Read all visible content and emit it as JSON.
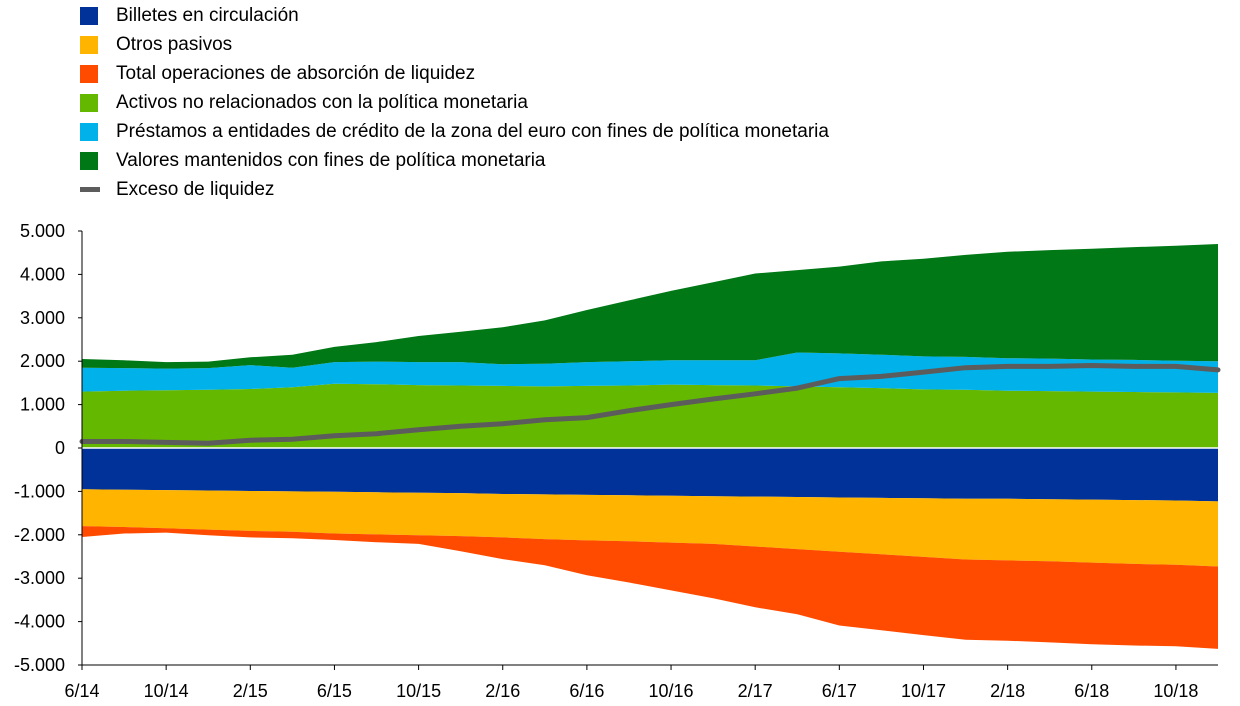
{
  "chart_data": {
    "type": "area",
    "xlabel": "",
    "ylabel": "",
    "ylim": [
      -5000,
      5000
    ],
    "yticks": [
      5000,
      4000,
      3000,
      2000,
      1000,
      0,
      -1000,
      -2000,
      -3000,
      -4000,
      -5000
    ],
    "ytick_labels": [
      "5.000",
      "4.000",
      "3.000",
      "2.000",
      "1.000",
      "0",
      "-1.000",
      "-2.000",
      "-3.000",
      "-4.000",
      "-5.000"
    ],
    "xtick_labels": [
      "6/14",
      "10/14",
      "2/15",
      "6/15",
      "10/15",
      "2/16",
      "6/16",
      "10/16",
      "2/17",
      "6/17",
      "10/17",
      "2/18",
      "6/18",
      "10/18"
    ],
    "legend_position": "top-left",
    "grid": false,
    "x": [
      "6/14",
      "8/14",
      "10/14",
      "12/14",
      "2/15",
      "4/15",
      "6/15",
      "8/15",
      "10/15",
      "12/15",
      "2/16",
      "4/16",
      "6/16",
      "8/16",
      "10/16",
      "12/16",
      "2/17",
      "4/17",
      "6/17",
      "8/17",
      "10/17",
      "12/17",
      "2/18",
      "4/18",
      "6/18",
      "8/18",
      "10/18",
      "12/18"
    ],
    "series": [
      {
        "name": "Billetes en circulación",
        "kind": "area-negative",
        "color": "#003299",
        "values": [
          -950,
          -960,
          -970,
          -980,
          -990,
          -1000,
          -1010,
          -1020,
          -1030,
          -1040,
          -1060,
          -1070,
          -1080,
          -1090,
          -1100,
          -1110,
          -1120,
          -1130,
          -1140,
          -1150,
          -1160,
          -1170,
          -1170,
          -1180,
          -1190,
          -1200,
          -1210,
          -1230
        ]
      },
      {
        "name": "Otros pasivos",
        "kind": "area-negative",
        "color": "#FFB400",
        "values": [
          -850,
          -860,
          -880,
          -900,
          -920,
          -930,
          -960,
          -970,
          -980,
          -990,
          -1000,
          -1030,
          -1050,
          -1060,
          -1080,
          -1100,
          -1150,
          -1200,
          -1250,
          -1300,
          -1350,
          -1400,
          -1420,
          -1430,
          -1450,
          -1470,
          -1480,
          -1500
        ]
      },
      {
        "name": "Total operaciones de absorción de liquidez",
        "kind": "area-negative",
        "color": "#FF4B00",
        "values": [
          -250,
          -150,
          -100,
          -130,
          -150,
          -150,
          -150,
          -180,
          -200,
          -350,
          -500,
          -600,
          -800,
          -950,
          -1100,
          -1250,
          -1400,
          -1500,
          -1700,
          -1750,
          -1800,
          -1850,
          -1850,
          -1870,
          -1880,
          -1880,
          -1880,
          -1900
        ]
      },
      {
        "name": "Activos no relacionados con la política monetaria",
        "kind": "area-positive",
        "color": "#65B800",
        "values": [
          1300,
          1320,
          1330,
          1340,
          1360,
          1400,
          1480,
          1470,
          1450,
          1440,
          1430,
          1420,
          1430,
          1440,
          1460,
          1450,
          1440,
          1420,
          1400,
          1380,
          1350,
          1340,
          1320,
          1310,
          1300,
          1290,
          1280,
          1270
        ]
      },
      {
        "name": "Préstamos a entidades de crédito de la zona del euro con fines de política monetaria",
        "kind": "area-positive",
        "color": "#00B1EA",
        "values": [
          550,
          520,
          500,
          500,
          550,
          450,
          500,
          520,
          530,
          540,
          500,
          520,
          550,
          560,
          560,
          570,
          580,
          780,
          780,
          770,
          760,
          760,
          750,
          750,
          740,
          740,
          730,
          730
        ]
      },
      {
        "name": "Valores mantenidos con fines de política monetaria",
        "kind": "area-positive",
        "color": "#007816",
        "values": [
          200,
          180,
          150,
          150,
          180,
          300,
          350,
          450,
          600,
          700,
          850,
          1000,
          1200,
          1400,
          1600,
          1800,
          2000,
          1900,
          2000,
          2150,
          2250,
          2350,
          2450,
          2500,
          2550,
          2600,
          2650,
          2700
        ]
      },
      {
        "name": "Exceso de liquidez",
        "kind": "line",
        "color": "#5C5C5C",
        "values": [
          150,
          150,
          130,
          110,
          180,
          200,
          280,
          330,
          420,
          500,
          560,
          650,
          700,
          860,
          1000,
          1130,
          1250,
          1380,
          1600,
          1650,
          1750,
          1850,
          1880,
          1880,
          1900,
          1880,
          1880,
          1800
        ]
      }
    ]
  }
}
